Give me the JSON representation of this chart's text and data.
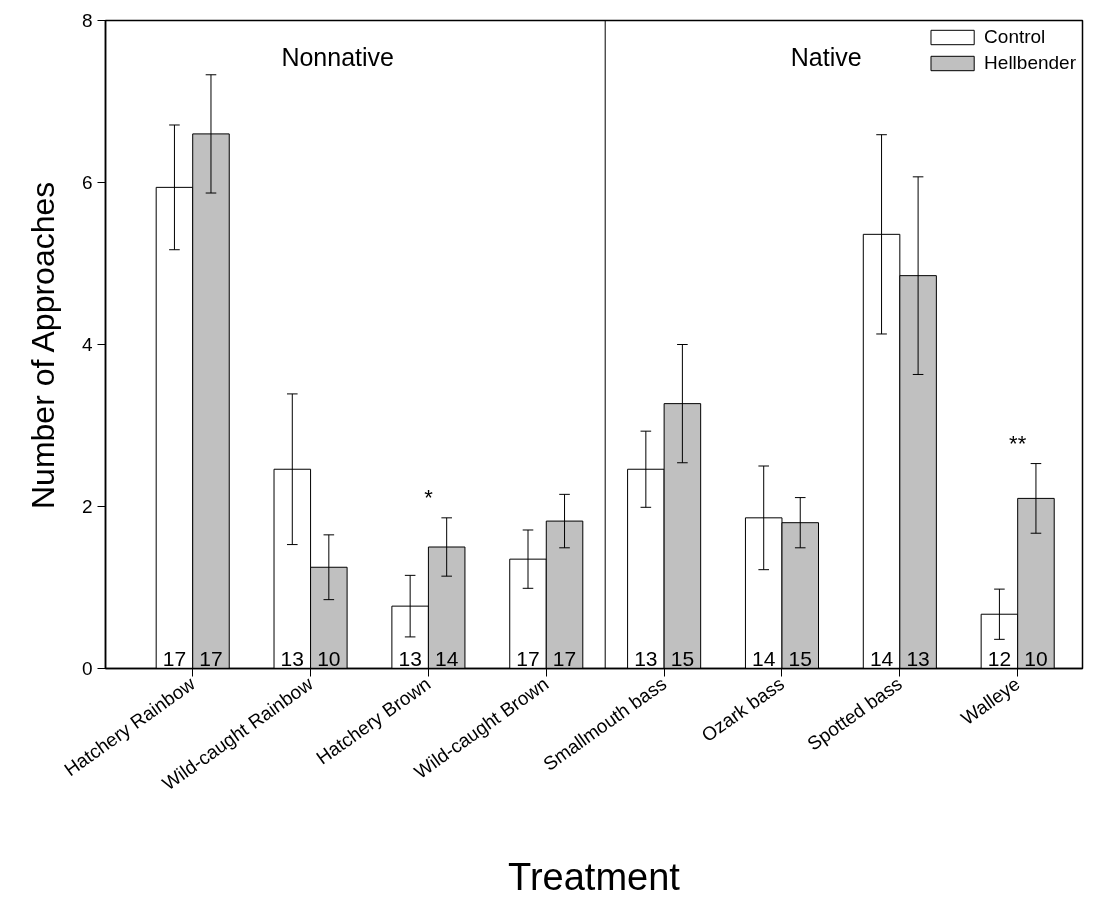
{
  "chart_data": {
    "type": "bar",
    "xlabel": "Treatment",
    "ylabel": "Number of Approaches",
    "categories": [
      "Hatchery Rainbow",
      "Wild-caught Rainbow",
      "Hatchery Brown",
      "Wild-caught Brown",
      "Smallmouth bass",
      "Ozark bass",
      "Spotted bass",
      "Walleye"
    ],
    "series": [
      {
        "name": "Control",
        "color": "#ffffff",
        "values": [
          5.94,
          2.46,
          0.77,
          1.35,
          2.46,
          1.86,
          5.36,
          0.67
        ],
        "errors": [
          0.77,
          0.93,
          0.38,
          0.36,
          0.47,
          0.64,
          1.23,
          0.31
        ]
      },
      {
        "name": "Hellbender",
        "color": "#c0c0c0",
        "values": [
          6.6,
          1.25,
          1.5,
          1.82,
          3.27,
          1.8,
          4.85,
          2.1
        ],
        "errors": [
          0.73,
          0.4,
          0.36,
          0.33,
          0.73,
          0.31,
          1.22,
          0.43
        ]
      }
    ],
    "ylim": [
      0,
      8
    ],
    "yticks": [
      0,
      2,
      4,
      6,
      8
    ],
    "grid": false,
    "legend": "top right",
    "annotations": [
      "Nonnative",
      "Native",
      {
        "text": "17",
        "x": "Hatchery Rainbow",
        "y": 0
      },
      {
        "text": "17",
        "x": "Hatchery Rainbow",
        "y": 0
      },
      {
        "text": "13",
        "x": "Wild-caught Rainbow",
        "y": 0
      },
      {
        "text": "10",
        "x": "Wild-caught Rainbow",
        "y": 0
      },
      {
        "text": "13",
        "x": "Hatchery Brown",
        "y": 0
      },
      {
        "text": "14",
        "x": "Hatchery Brown",
        "y": 0
      },
      {
        "text": "17",
        "x": "Wild-caught Brown",
        "y": 0
      },
      {
        "text": "17",
        "x": "Wild-caught Brown",
        "y": 0
      },
      {
        "text": "13",
        "x": "Smallmouth bass",
        "y": 0
      },
      {
        "text": "15",
        "x": "Smallmouth bass",
        "y": 0
      },
      {
        "text": "14",
        "x": "Ozark bass",
        "y": 0
      },
      {
        "text": "15",
        "x": "Ozark bass",
        "y": 0
      },
      {
        "text": "14",
        "x": "Spotted bass",
        "y": 0
      },
      {
        "text": "13",
        "x": "Spotted bass",
        "y": 0
      },
      {
        "text": "12",
        "x": "Walleye",
        "y": 0
      },
      {
        "text": "10",
        "x": "Walleye",
        "y": 0
      },
      {
        "text": "*",
        "x": "Hatchery Brown",
        "y": 1.5
      },
      {
        "text": "**",
        "x": "Walleye",
        "y": 2.1
      }
    ]
  }
}
